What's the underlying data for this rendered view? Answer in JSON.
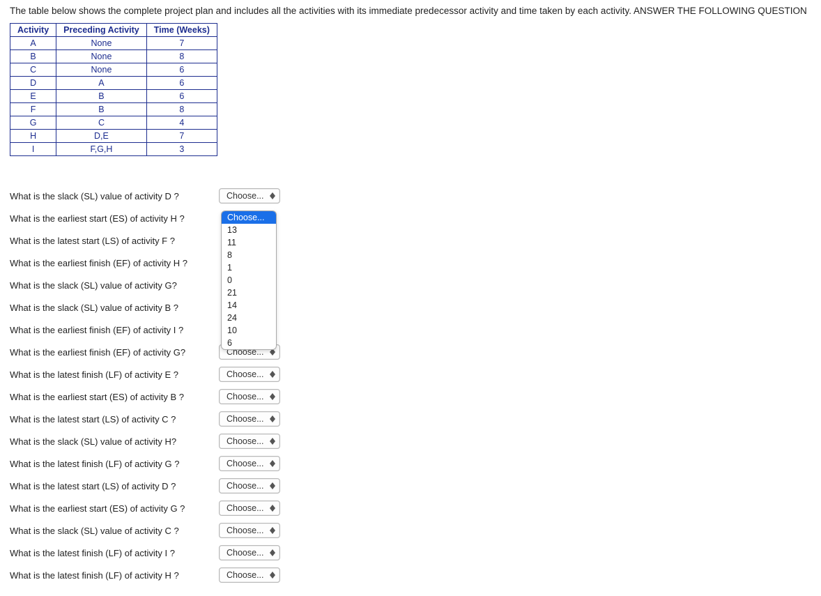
{
  "intro": "The table below shows the complete project plan and includes all the activities with its immediate predecessor activity and time taken by each activity. ANSWER THE FOLLOWING QUESTION",
  "table": {
    "headers": [
      "Activity",
      "Preceding Activity",
      "Time (Weeks)"
    ],
    "rows": [
      [
        "A",
        "None",
        "7"
      ],
      [
        "B",
        "None",
        "8"
      ],
      [
        "C",
        "None",
        "6"
      ],
      [
        "D",
        "A",
        "6"
      ],
      [
        "E",
        "B",
        "6"
      ],
      [
        "F",
        "B",
        "8"
      ],
      [
        "G",
        "C",
        "4"
      ],
      [
        "H",
        "D,E",
        "7"
      ],
      [
        "I",
        "F,G,H",
        "3"
      ]
    ]
  },
  "choose_label": "Choose...",
  "dropdown_options": [
    "Choose...",
    "13",
    "11",
    "8",
    "1",
    "0",
    "21",
    "14",
    "24",
    "10",
    "6"
  ],
  "dropdown_selected_index": 0,
  "questions": [
    {
      "text": "What is the slack (SL) value of activity D ?",
      "show_button": true
    },
    {
      "text": "What is the earliest start (ES) of activity H ?",
      "show_button": false,
      "dropdown_open": true
    },
    {
      "text": "What is the latest start (LS) of activity F ?",
      "show_button": false
    },
    {
      "text": "What is the earliest finish (EF) of activity H ?",
      "show_button": false
    },
    {
      "text": "What is the slack (SL) value of activity G?",
      "show_button": false
    },
    {
      "text": "What is the slack (SL) value of activity B ?",
      "show_button": false
    },
    {
      "text": "What is the earliest finish (EF) of activity I ?",
      "show_button": false
    },
    {
      "text": "What is the earliest finish (EF) of activity G?",
      "show_button": true
    },
    {
      "text": "What is the latest finish (LF) of activity E ?",
      "show_button": true
    },
    {
      "text": "What is the earliest start (ES) of activity B ?",
      "show_button": true
    },
    {
      "text": "What is the latest start (LS) of activity C ?",
      "show_button": true
    },
    {
      "text": "What is the slack (SL) value of activity H?",
      "show_button": true
    },
    {
      "text": "What is the latest finish (LF) of activity G ?",
      "show_button": true
    },
    {
      "text": "What is the latest start (LS) of activity D ?",
      "show_button": true
    },
    {
      "text": "What is the earliest start (ES) of activity G ?",
      "show_button": true
    },
    {
      "text": "What is the slack (SL) value of activity C ?",
      "show_button": true
    },
    {
      "text": "What is the latest finish (LF) of activity I ?",
      "show_button": true
    },
    {
      "text": "What is the latest finish (LF) of activity H ?",
      "show_button": true
    }
  ]
}
